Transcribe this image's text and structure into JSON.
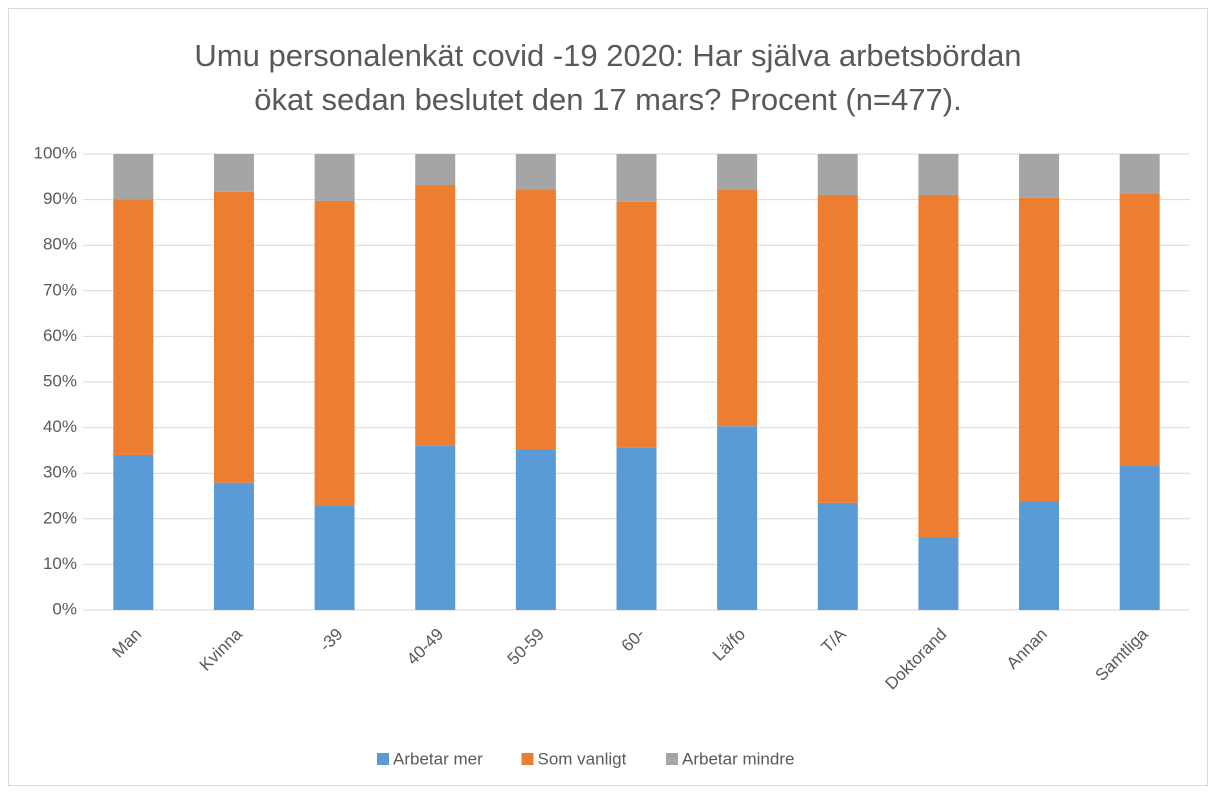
{
  "chart_data": {
    "type": "stacked_bar",
    "title": "Umu personalenkät covid -19 2020: Har själva arbetsbördan",
    "subtitle": "ökat sedan beslutet den 17 mars? Procent (n=477).",
    "categories": [
      "Man",
      "Kvinna",
      "-39",
      "40-49",
      "50-59",
      "60-",
      "Lä/fo",
      "T/A",
      "Doktorand",
      "Annan",
      "Samtliga"
    ],
    "series": [
      {
        "name": "Arbetar mer",
        "color": "#5b9bd5",
        "values": [
          34.0,
          27.9,
          23.0,
          36.0,
          35.3,
          35.7,
          40.3,
          23.5,
          16.0,
          23.8,
          31.7
        ]
      },
      {
        "name": "Som vanligt",
        "color": "#ed7d31",
        "values": [
          56.1,
          63.8,
          66.7,
          57.2,
          57.0,
          53.8,
          51.8,
          67.5,
          75.0,
          66.6,
          59.7
        ]
      },
      {
        "name": "Arbetar mindre",
        "color": "#a5a5a5",
        "values": [
          9.9,
          8.3,
          10.3,
          6.8,
          7.7,
          10.5,
          7.9,
          9.0,
          9.0,
          9.6,
          8.6
        ]
      }
    ],
    "ylim": [
      0,
      100
    ],
    "yticks": [
      {
        "value": 0,
        "label": "0%"
      },
      {
        "value": 10,
        "label": "10%"
      },
      {
        "value": 20,
        "label": "20%"
      },
      {
        "value": 30,
        "label": "30%"
      },
      {
        "value": 40,
        "label": "40%"
      },
      {
        "value": 50,
        "label": "50%"
      },
      {
        "value": 60,
        "label": "60%"
      },
      {
        "value": 70,
        "label": "70%"
      },
      {
        "value": 80,
        "label": "80%"
      },
      {
        "value": 90,
        "label": "90%"
      },
      {
        "value": 100,
        "label": "100%"
      }
    ],
    "grid": true,
    "legend": "bottom"
  }
}
